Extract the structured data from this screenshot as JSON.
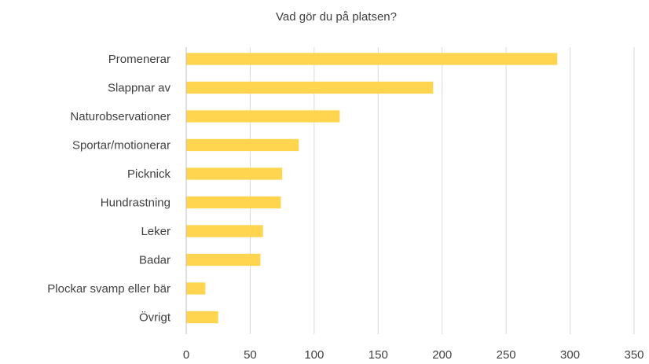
{
  "chart_data": {
    "type": "bar",
    "orientation": "horizontal",
    "title": "Vad gör du på platsen?",
    "categories": [
      "Promenerar",
      "Slappnar av",
      "Naturobservationer",
      "Sportar/motionerar",
      "Picknick",
      "Hundrastning",
      "Leker",
      "Badar",
      "Plockar svamp eller bär",
      "Övrigt"
    ],
    "values": [
      290,
      193,
      120,
      88,
      75,
      74,
      60,
      58,
      15,
      25
    ],
    "color": "#ffd54f",
    "xlim": [
      0,
      350
    ],
    "xticks": [
      0,
      50,
      100,
      150,
      200,
      250,
      300,
      350
    ],
    "grid": true
  }
}
